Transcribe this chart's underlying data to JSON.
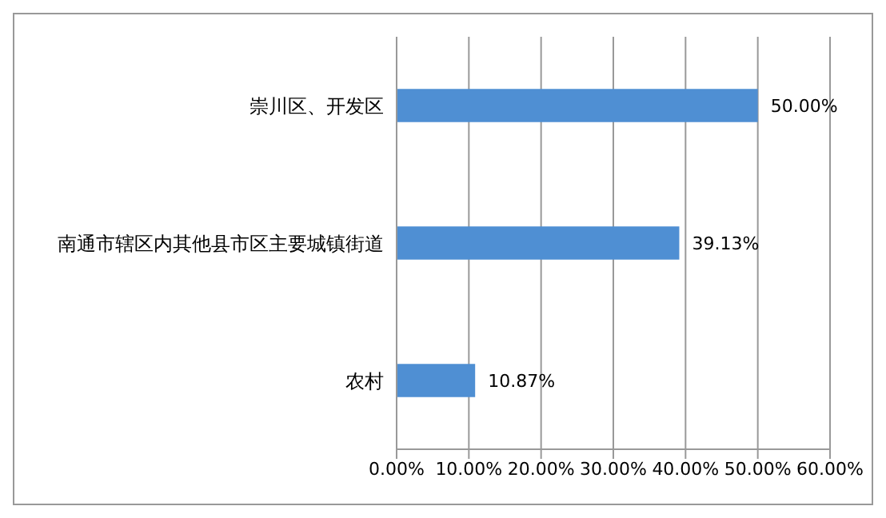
{
  "chart_data": {
    "type": "bar",
    "orientation": "horizontal",
    "categories": [
      "崇川区、开发区",
      "南通市辖区内其他县市区主要城镇街道",
      "农村"
    ],
    "values": [
      50,
      39.13,
      10.87
    ],
    "color": "#4f8fd3",
    "value_labels": [
      "50.00%",
      "39.13%",
      "10.87%"
    ],
    "xlim": [
      0,
      60
    ],
    "xticks": [
      {
        "value": 0,
        "label": "0.00%"
      },
      {
        "value": 10,
        "label": "10.00%"
      },
      {
        "value": 20,
        "label": "20.00%"
      },
      {
        "value": 30,
        "label": "30.00%"
      },
      {
        "value": 40,
        "label": "40.00%"
      },
      {
        "value": 50,
        "label": "50.00%"
      },
      {
        "value": 60,
        "label": "60.00%"
      }
    ],
    "grid": "x",
    "legend": false
  }
}
